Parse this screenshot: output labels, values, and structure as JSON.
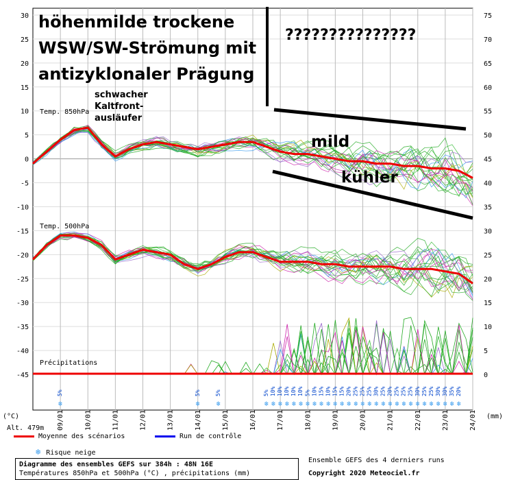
{
  "chart_data": {
    "type": "line",
    "title": "Diagramme des ensembles GEFS sur 384h : 48N 16E",
    "subtitle": "Températures 850hPa et 500hPa (°C) , précipitations (mm)",
    "left_axis": {
      "label": "(°C)",
      "ticks": [
        30,
        25,
        20,
        15,
        10,
        5,
        0,
        -5,
        -10,
        -15,
        -20,
        -25,
        -30,
        -35,
        -40,
        -45
      ],
      "range": [
        -45,
        30
      ]
    },
    "right_axis": {
      "label": "(mm)",
      "ticks": [
        75,
        70,
        65,
        60,
        55,
        50,
        45,
        40,
        35,
        30,
        25,
        20,
        15,
        10,
        5,
        0
      ],
      "range": [
        0,
        75
      ]
    },
    "altitude_label": "Alt. 479m",
    "x_labels": [
      "09/01",
      "10/01",
      "11/01",
      "12/01",
      "13/01",
      "14/01",
      "15/01",
      "16/01",
      "17/01",
      "18/01",
      "19/01",
      "20/01",
      "21/01",
      "22/01",
      "23/01",
      "24/01"
    ],
    "panel_labels": {
      "t850": "Temp. 850hPa",
      "t500": "Temp. 500hPa",
      "precip": "Précipitations"
    },
    "series": [
      {
        "name": "Moyenne des scénarios",
        "color": "#ee0000",
        "panel": "t850",
        "x": [
          8.0,
          8.5,
          9.0,
          9.5,
          10.0,
          10.5,
          11.0,
          11.5,
          12.0,
          12.5,
          13.0,
          13.5,
          14.0,
          14.5,
          15.0,
          15.5,
          16.0,
          16.5,
          17.0,
          17.5,
          18.0,
          18.5,
          19.0,
          19.5,
          20.0,
          20.5,
          21.0,
          21.5,
          22.0,
          22.5,
          23.0,
          23.5,
          24.0
        ],
        "values": [
          -1.0,
          1.5,
          4.0,
          6.0,
          6.5,
          3.0,
          0.5,
          2.0,
          3.0,
          3.5,
          3.0,
          2.5,
          2.0,
          2.5,
          3.0,
          3.5,
          3.5,
          2.5,
          1.5,
          1.0,
          1.0,
          0.5,
          0.0,
          -0.5,
          -0.5,
          -1.0,
          -1.0,
          -1.5,
          -1.5,
          -2.0,
          -2.0,
          -2.5,
          -4.0
        ]
      },
      {
        "name": "Moyenne des scénarios",
        "color": "#ee0000",
        "panel": "t500",
        "x": [
          8.0,
          8.5,
          9.0,
          9.5,
          10.0,
          10.5,
          11.0,
          11.5,
          12.0,
          12.5,
          13.0,
          13.5,
          14.0,
          14.5,
          15.0,
          15.5,
          16.0,
          16.5,
          17.0,
          17.5,
          18.0,
          18.5,
          19.0,
          19.5,
          20.0,
          20.5,
          21.0,
          21.5,
          22.0,
          22.5,
          23.0,
          23.5,
          24.0
        ],
        "values": [
          -21.0,
          -18.0,
          -16.0,
          -16.0,
          -16.5,
          -18.0,
          -21.0,
          -20.0,
          -19.0,
          -19.5,
          -20.0,
          -22.0,
          -23.0,
          -22.0,
          -20.5,
          -19.5,
          -19.5,
          -20.5,
          -21.5,
          -21.5,
          -21.5,
          -22.0,
          -22.0,
          -22.5,
          -22.5,
          -22.5,
          -22.5,
          -23.0,
          -23.0,
          -23.0,
          -23.5,
          -24.0,
          -26.0
        ]
      },
      {
        "name": "Run de contrôle",
        "color": "#0000ee"
      }
    ],
    "snow_risk": {
      "label": "Risque neige",
      "x": [
        9.0,
        14.0,
        14.75,
        16.5,
        16.75,
        17.0,
        17.25,
        17.5,
        17.75,
        18.0,
        18.25,
        18.5,
        18.75,
        19.0,
        19.25,
        19.5,
        19.75,
        20.0,
        20.25,
        20.5,
        20.75,
        21.0,
        21.25,
        21.5,
        21.75,
        22.0,
        22.25,
        22.5,
        22.75,
        23.0,
        23.25,
        23.5
      ],
      "percent": [
        "5%",
        "5%",
        "5%",
        "5%",
        "10%",
        "10%",
        "10%",
        "10%",
        "10%",
        "5%",
        "10%",
        "15%",
        "10%",
        "15%",
        "15%",
        "20%",
        "25%",
        "25%",
        "25%",
        "30%",
        "25%",
        "20%",
        "25%",
        "25%",
        "25%",
        "30%",
        "25%",
        "25%",
        "30%",
        "30%",
        "35%",
        "20%"
      ]
    },
    "legend_placement": "bottom",
    "grid": true
  },
  "annotations": {
    "title_line1": "höhenmilde trockene",
    "title_line2": "WSW/SW-Strömung mit",
    "title_line3": "antizyklonaler Prägung",
    "front_line1": "schwacher",
    "front_line2": "Kaltfront-",
    "front_line3": "ausläufer",
    "question": "???????????????",
    "mild": "mild",
    "kuehler": "kühler"
  },
  "footer": {
    "credit_line1": "Ensemble GEFS des 4 derniers runs",
    "credit_line2": "Copyright 2020 Meteociel.fr"
  }
}
